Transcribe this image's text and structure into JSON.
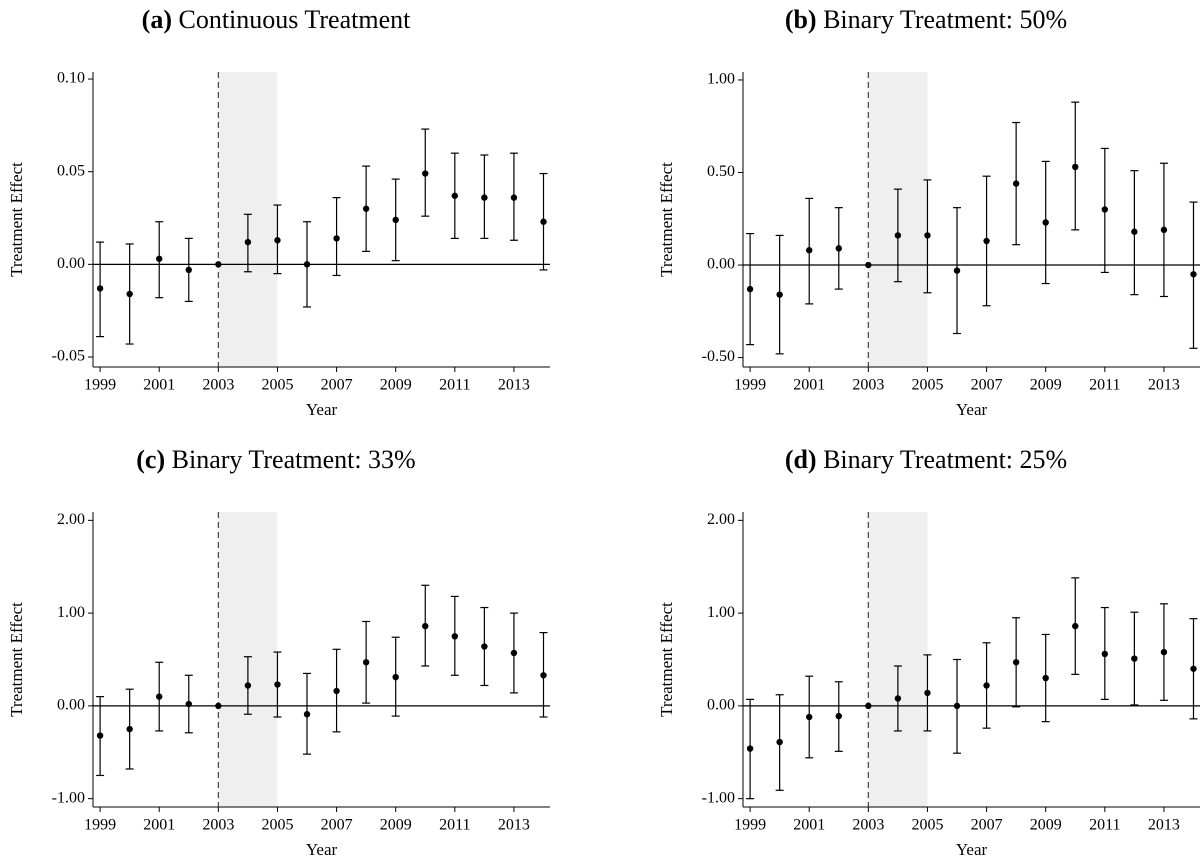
{
  "chart_data": [
    {
      "type": "scatter",
      "label": "(a)",
      "title": "Continuous Treatment",
      "x_label": "Year",
      "y_label": "Treatment Effect",
      "color": "#000000",
      "x": [
        1999,
        2000,
        2001,
        2002,
        2003,
        2004,
        2005,
        2006,
        2007,
        2008,
        2009,
        2010,
        2011,
        2012,
        2013,
        2014
      ],
      "values": [
        -0.013,
        -0.016,
        0.003,
        -0.003,
        0,
        0.012,
        0.013,
        0,
        0.014,
        0.03,
        0.024,
        0.049,
        0.037,
        0.036,
        0.036,
        0.023
      ],
      "ci_low": [
        -0.039,
        -0.043,
        -0.018,
        -0.02,
        null,
        -0.004,
        -0.005,
        -0.023,
        -0.006,
        0.007,
        0.002,
        0.026,
        0.014,
        0.014,
        0.013,
        -0.003
      ],
      "ci_high": [
        0.012,
        0.011,
        0.023,
        0.014,
        null,
        0.027,
        0.032,
        0.023,
        0.036,
        0.053,
        0.046,
        0.073,
        0.06,
        0.059,
        0.06,
        0.049
      ],
      "xlim": [
        1998.76,
        2014.22
      ],
      "ylim": [
        -0.0554,
        0.1038
      ],
      "xticks": [
        1999,
        2001,
        2003,
        2005,
        2007,
        2009,
        2011,
        2013
      ],
      "yticks": [
        {
          "value": 0.1,
          "label": "0.10"
        },
        0.05,
        {
          "value": 0,
          "label": "0.00"
        },
        -0.05
      ],
      "shade": [
        2003,
        2005
      ],
      "vline": 2003,
      "hline": 0
    },
    {
      "type": "scatter",
      "label": "(b)",
      "title": "Binary Treatment: 50%",
      "x_label": "Year",
      "y_label": "Treatment Effect",
      "color": "#000000",
      "x": [
        1999,
        2000,
        2001,
        2002,
        2003,
        2004,
        2005,
        2006,
        2007,
        2008,
        2009,
        2010,
        2011,
        2012,
        2013,
        2014
      ],
      "values": [
        -0.13,
        -0.16,
        0.08,
        0.09,
        0,
        0.16,
        0.16,
        -0.03,
        0.13,
        0.44,
        0.23,
        0.53,
        0.3,
        0.18,
        0.19,
        -0.05
      ],
      "ci_low": [
        -0.43,
        -0.48,
        -0.21,
        -0.13,
        null,
        -0.09,
        -0.15,
        -0.37,
        -0.22,
        0.11,
        -0.1,
        0.19,
        -0.04,
        -0.16,
        -0.17,
        -0.45
      ],
      "ci_high": [
        0.17,
        0.16,
        0.36,
        0.31,
        null,
        0.41,
        0.46,
        0.31,
        0.48,
        0.77,
        0.56,
        0.88,
        0.63,
        0.51,
        0.55,
        0.34
      ],
      "xlim": [
        1998.76,
        2014.22
      ],
      "ylim": [
        -0.551,
        1.043
      ],
      "xticks": [
        1999,
        2001,
        2003,
        2005,
        2007,
        2009,
        2011,
        2013
      ],
      "yticks": [
        {
          "value": 1,
          "label": "1.00"
        },
        {
          "value": 0.5,
          "label": "0.50"
        },
        {
          "value": 0,
          "label": "0.00"
        },
        {
          "value": -0.5,
          "label": "-0.50"
        }
      ],
      "shade": [
        2003,
        2005
      ],
      "vline": 2003,
      "hline": 0
    },
    {
      "type": "scatter",
      "label": "(c)",
      "title": "Binary Treatment: 33%",
      "x_label": "Year",
      "y_label": "Treatment Effect",
      "color": "#000000",
      "x": [
        1999,
        2000,
        2001,
        2002,
        2003,
        2004,
        2005,
        2006,
        2007,
        2008,
        2009,
        2010,
        2011,
        2012,
        2013,
        2014
      ],
      "values": [
        -0.32,
        -0.25,
        0.1,
        0.02,
        0,
        0.22,
        0.23,
        -0.09,
        0.16,
        0.47,
        0.31,
        0.86,
        0.75,
        0.64,
        0.57,
        0.33
      ],
      "ci_low": [
        -0.75,
        -0.68,
        -0.27,
        -0.29,
        null,
        -0.09,
        -0.12,
        -0.52,
        -0.28,
        0.03,
        -0.11,
        0.43,
        0.33,
        0.22,
        0.14,
        -0.12
      ],
      "ci_high": [
        0.1,
        0.18,
        0.47,
        0.33,
        null,
        0.53,
        0.58,
        0.35,
        0.61,
        0.91,
        0.74,
        1.3,
        1.18,
        1.06,
        1.0,
        0.79
      ],
      "xlim": [
        1998.76,
        2014.22
      ],
      "ylim": [
        -1.09,
        2.09
      ],
      "xticks": [
        1999,
        2001,
        2003,
        2005,
        2007,
        2009,
        2011,
        2013
      ],
      "yticks": [
        {
          "value": 2,
          "label": "2.00"
        },
        {
          "value": 1,
          "label": "1.00"
        },
        {
          "value": 0,
          "label": "0.00"
        },
        {
          "value": -1,
          "label": "-1.00"
        }
      ],
      "shade": [
        2003,
        2005
      ],
      "vline": 2003,
      "hline": 0
    },
    {
      "type": "scatter",
      "label": "(d)",
      "title": "Binary Treatment: 25%",
      "x_label": "Year",
      "y_label": "Treatment Effect",
      "color": "#000000",
      "x": [
        1999,
        2000,
        2001,
        2002,
        2003,
        2004,
        2005,
        2006,
        2007,
        2008,
        2009,
        2010,
        2011,
        2012,
        2013,
        2014
      ],
      "values": [
        -0.46,
        -0.39,
        -0.12,
        -0.11,
        0,
        0.08,
        0.14,
        0,
        0.22,
        0.47,
        0.3,
        0.86,
        0.56,
        0.51,
        0.58,
        0.4
      ],
      "ci_low": [
        -1.0,
        -0.91,
        -0.56,
        -0.49,
        null,
        -0.27,
        -0.27,
        -0.51,
        -0.24,
        -0.01,
        -0.17,
        0.34,
        0.07,
        0.01,
        0.06,
        -0.14
      ],
      "ci_high": [
        0.07,
        0.12,
        0.32,
        0.26,
        null,
        0.43,
        0.55,
        0.5,
        0.68,
        0.95,
        0.77,
        1.38,
        1.06,
        1.01,
        1.1,
        0.94
      ],
      "xlim": [
        1998.76,
        2014.22
      ],
      "ylim": [
        -1.09,
        2.09
      ],
      "xticks": [
        1999,
        2001,
        2003,
        2005,
        2007,
        2009,
        2011,
        2013
      ],
      "yticks": [
        {
          "value": 2,
          "label": "2.00"
        },
        {
          "value": 1,
          "label": "1.00"
        },
        {
          "value": 0,
          "label": "0.00"
        },
        {
          "value": -1,
          "label": "-1.00"
        }
      ],
      "shade": [
        2003,
        2005
      ],
      "vline": 2003,
      "hline": 0
    }
  ]
}
